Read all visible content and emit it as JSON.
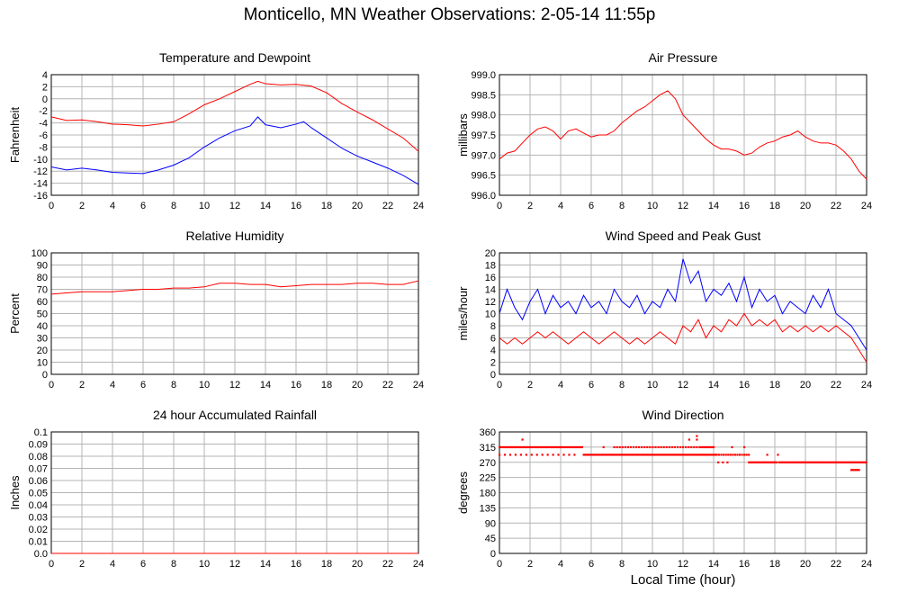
{
  "page": {
    "title": "Monticello, MN Weather Observations: 2-05-14 11:55p"
  },
  "chart_data": [
    {
      "id": "temp",
      "type": "line",
      "title": "Temperature and Dewpoint",
      "xlabel": "",
      "ylabel": "Fahrenheit",
      "xlim": [
        0,
        24
      ],
      "ylim": [
        -16,
        4
      ],
      "x_ticks": [
        0,
        2,
        4,
        6,
        8,
        10,
        12,
        14,
        16,
        18,
        20,
        22,
        24
      ],
      "y_ticks": [
        -16,
        -14,
        -12,
        -10,
        -8,
        -6,
        -4,
        -2,
        0,
        2,
        4
      ],
      "y_tick_labels": [
        "-16",
        "-14",
        "-12",
        "-10",
        "-8",
        "-6",
        "-4",
        "-2",
        "0",
        "2",
        "4"
      ],
      "grid": true,
      "series": [
        {
          "color": "#ff0000",
          "x": [
            0,
            1,
            2,
            3,
            4,
            5,
            6,
            7,
            8,
            9,
            10,
            11,
            12,
            13,
            13.5,
            14,
            15,
            16,
            17,
            18,
            19,
            20,
            21,
            22,
            23,
            24
          ],
          "y": [
            -3,
            -3.6,
            -3.5,
            -3.8,
            -4.2,
            -4.3,
            -4.5,
            -4.2,
            -3.8,
            -2.5,
            -1,
            0,
            1.2,
            2.4,
            2.9,
            2.5,
            2.3,
            2.4,
            2.1,
            1,
            -0.8,
            -2.2,
            -3.5,
            -5,
            -6.5,
            -8.7
          ]
        },
        {
          "color": "#0000ff",
          "x": [
            0,
            1,
            2,
            3,
            4,
            5,
            6,
            7,
            8,
            9,
            10,
            11,
            12,
            13,
            13.5,
            14,
            15,
            16,
            16.5,
            17,
            18,
            19,
            20,
            21,
            22,
            23,
            24
          ],
          "y": [
            -11.3,
            -11.8,
            -11.5,
            -11.8,
            -12.2,
            -12.3,
            -12.4,
            -11.8,
            -11,
            -9.8,
            -8,
            -6.5,
            -5.3,
            -4.5,
            -3,
            -4.3,
            -4.8,
            -4.2,
            -3.8,
            -4.8,
            -6.5,
            -8.2,
            -9.5,
            -10.5,
            -11.5,
            -12.7,
            -14.2
          ]
        }
      ]
    },
    {
      "id": "pressure",
      "type": "line",
      "title": "Air Pressure",
      "xlabel": "",
      "ylabel": "millibars",
      "xlim": [
        0,
        24
      ],
      "ylim": [
        996,
        999
      ],
      "x_ticks": [
        0,
        2,
        4,
        6,
        8,
        10,
        12,
        14,
        16,
        18,
        20,
        22,
        24
      ],
      "y_ticks": [
        996,
        996.5,
        997,
        997.5,
        998,
        998.5,
        999
      ],
      "y_tick_labels": [
        "996.0",
        "996.5",
        "997.0",
        "997.5",
        "998.0",
        "998.5",
        "999.0"
      ],
      "grid": true,
      "series": [
        {
          "color": "#ff0000",
          "x": [
            0,
            0.5,
            1,
            1.5,
            2,
            2.5,
            3,
            3.5,
            4,
            4.5,
            5,
            5.5,
            6,
            6.5,
            7,
            7.5,
            8,
            8.5,
            9,
            9.5,
            10,
            10.5,
            11,
            11.5,
            12,
            12.5,
            13,
            13.5,
            14,
            14.5,
            15,
            15.5,
            16,
            16.5,
            17,
            17.5,
            18,
            18.5,
            19,
            19.5,
            20,
            20.5,
            21,
            21.5,
            22,
            22.5,
            23,
            23.5,
            24
          ],
          "y": [
            996.9,
            997.05,
            997.1,
            997.3,
            997.5,
            997.65,
            997.7,
            997.6,
            997.4,
            997.6,
            997.65,
            997.55,
            997.45,
            997.5,
            997.5,
            997.6,
            997.8,
            997.95,
            998.1,
            998.2,
            998.35,
            998.5,
            998.6,
            998.4,
            998.0,
            997.8,
            997.6,
            997.4,
            997.25,
            997.15,
            997.15,
            997.1,
            997.0,
            997.05,
            997.2,
            997.3,
            997.35,
            997.45,
            997.5,
            997.6,
            997.45,
            997.35,
            997.3,
            997.3,
            997.25,
            997.1,
            996.9,
            996.6,
            996.4
          ]
        }
      ]
    },
    {
      "id": "humidity",
      "type": "line",
      "title": "Relative Humidity",
      "xlabel": "",
      "ylabel": "Percent",
      "xlim": [
        0,
        24
      ],
      "ylim": [
        0,
        100
      ],
      "x_ticks": [
        0,
        2,
        4,
        6,
        8,
        10,
        12,
        14,
        16,
        18,
        20,
        22,
        24
      ],
      "y_ticks": [
        0,
        10,
        20,
        30,
        40,
        50,
        60,
        70,
        80,
        90,
        100
      ],
      "y_tick_labels": [
        "0",
        "10",
        "20",
        "30",
        "40",
        "50",
        "60",
        "70",
        "80",
        "90",
        "100"
      ],
      "grid": true,
      "series": [
        {
          "color": "#ff0000",
          "x": [
            0,
            1,
            2,
            3,
            4,
            5,
            6,
            7,
            8,
            9,
            10,
            11,
            12,
            13,
            14,
            15,
            16,
            17,
            18,
            19,
            20,
            21,
            22,
            23,
            24
          ],
          "y": [
            66,
            67,
            68,
            68,
            68,
            69,
            70,
            70,
            71,
            71,
            72,
            75,
            75,
            74,
            74,
            72,
            73,
            74,
            74,
            74,
            75,
            75,
            74,
            74,
            77
          ]
        }
      ]
    },
    {
      "id": "wind",
      "type": "line",
      "title": "Wind Speed and Peak Gust",
      "xlabel": "",
      "ylabel": "miles/hour",
      "xlim": [
        0,
        24
      ],
      "ylim": [
        0,
        20
      ],
      "x_ticks": [
        0,
        2,
        4,
        6,
        8,
        10,
        12,
        14,
        16,
        18,
        20,
        22,
        24
      ],
      "y_ticks": [
        0,
        2,
        4,
        6,
        8,
        10,
        12,
        14,
        16,
        18,
        20
      ],
      "y_tick_labels": [
        "0",
        "2",
        "4",
        "6",
        "8",
        "10",
        "12",
        "14",
        "16",
        "18",
        "20"
      ],
      "grid": true,
      "series": [
        {
          "color": "#0000ff",
          "x": [
            0,
            0.5,
            1,
            1.5,
            2,
            2.5,
            3,
            3.5,
            4,
            4.5,
            5,
            5.5,
            6,
            6.5,
            7,
            7.5,
            8,
            8.5,
            9,
            9.5,
            10,
            10.5,
            11,
            11.5,
            12,
            12.5,
            13,
            13.5,
            14,
            14.5,
            15,
            15.5,
            16,
            16.5,
            17,
            17.5,
            18,
            18.5,
            19,
            19.5,
            20,
            20.5,
            21,
            21.5,
            22,
            22.5,
            23,
            23.5,
            24
          ],
          "y": [
            10,
            14,
            11,
            9,
            12,
            14,
            10,
            13,
            11,
            12,
            10,
            13,
            11,
            12,
            10,
            14,
            12,
            11,
            13,
            10,
            12,
            11,
            14,
            12,
            19,
            15,
            17,
            12,
            14,
            13,
            15,
            12,
            16,
            11,
            14,
            12,
            13,
            10,
            12,
            11,
            10,
            13,
            11,
            14,
            10,
            9,
            8,
            6,
            4
          ]
        },
        {
          "color": "#ff0000",
          "x": [
            0,
            0.5,
            1,
            1.5,
            2,
            2.5,
            3,
            3.5,
            4,
            4.5,
            5,
            5.5,
            6,
            6.5,
            7,
            7.5,
            8,
            8.5,
            9,
            9.5,
            10,
            10.5,
            11,
            11.5,
            12,
            12.5,
            13,
            13.5,
            14,
            14.5,
            15,
            15.5,
            16,
            16.5,
            17,
            17.5,
            18,
            18.5,
            19,
            19.5,
            20,
            20.5,
            21,
            21.5,
            22,
            22.5,
            23,
            23.5,
            24
          ],
          "y": [
            6,
            5,
            6,
            5,
            6,
            7,
            6,
            7,
            6,
            5,
            6,
            7,
            6,
            5,
            6,
            7,
            6,
            5,
            6,
            5,
            6,
            7,
            6,
            5,
            8,
            7,
            9,
            6,
            8,
            7,
            9,
            8,
            10,
            8,
            9,
            8,
            9,
            7,
            8,
            7,
            8,
            7,
            8,
            7,
            8,
            7,
            6,
            4,
            2
          ]
        }
      ]
    },
    {
      "id": "rain",
      "type": "line",
      "title": "24 hour Accumulated Rainfall",
      "xlabel": "",
      "ylabel": "Inches",
      "xlim": [
        0,
        24
      ],
      "ylim": [
        0,
        0.1
      ],
      "x_ticks": [
        0,
        2,
        4,
        6,
        8,
        10,
        12,
        14,
        16,
        18,
        20,
        22,
        24
      ],
      "y_ticks": [
        0,
        0.01,
        0.02,
        0.03,
        0.04,
        0.05,
        0.06,
        0.07,
        0.08,
        0.09,
        0.1
      ],
      "y_tick_labels": [
        "0.0",
        "0.01",
        "0.02",
        "0.03",
        "0.04",
        "0.05",
        "0.06",
        "0.07",
        "0.08",
        "0.09",
        "0.1"
      ],
      "grid": true,
      "series": [
        {
          "color": "#ff0000",
          "x": [
            0,
            24
          ],
          "y": [
            0,
            0
          ]
        }
      ]
    },
    {
      "id": "direction",
      "type": "scatter",
      "title": "Wind Direction",
      "xlabel": "Local Time (hour)",
      "ylabel": "degrees",
      "xlim": [
        0,
        24
      ],
      "ylim": [
        0,
        360
      ],
      "x_ticks": [
        0,
        2,
        4,
        6,
        8,
        10,
        12,
        14,
        16,
        18,
        20,
        22,
        24
      ],
      "y_ticks": [
        0,
        45,
        90,
        135,
        180,
        225,
        270,
        315,
        360
      ],
      "y_tick_labels": [
        "0",
        "45",
        "90",
        "135",
        "180",
        "225",
        "270",
        "315",
        "360"
      ],
      "grid": true,
      "runs": [
        {
          "x_start": 0.0,
          "x_end": 5.4,
          "y": 315,
          "step": 0.1
        },
        {
          "x_start": 0.0,
          "x_end": 5.0,
          "y": 292.5,
          "step": 0.35
        },
        {
          "x_start": 5.5,
          "x_end": 14.2,
          "y": 292.5,
          "step": 0.1
        },
        {
          "x_start": 7.5,
          "x_end": 13.2,
          "y": 315,
          "step": 0.18
        },
        {
          "x_start": 13.2,
          "x_end": 14.0,
          "y": 315,
          "step": 0.1
        },
        {
          "x_start": 14.2,
          "x_end": 16.3,
          "y": 292.5,
          "step": 0.15
        },
        {
          "x_start": 14.3,
          "x_end": 14.9,
          "y": 270,
          "step": 0.3
        },
        {
          "x_start": 16.3,
          "x_end": 18.2,
          "y": 270,
          "step": 0.08
        },
        {
          "x_start": 18.3,
          "x_end": 24.0,
          "y": 270,
          "step": 0.08
        },
        {
          "x_start": 23.0,
          "x_end": 23.5,
          "y": 247.5,
          "step": 0.1
        }
      ],
      "points": [
        {
          "x": 1.5,
          "y": 337.5
        },
        {
          "x": 6.8,
          "y": 315
        },
        {
          "x": 12.4,
          "y": 337.5
        },
        {
          "x": 12.9,
          "y": 337.5
        },
        {
          "x": 12.9,
          "y": 348
        },
        {
          "x": 15.2,
          "y": 315
        },
        {
          "x": 17.5,
          "y": 292.5
        },
        {
          "x": 18.2,
          "y": 292.5
        },
        {
          "x": 16.0,
          "y": 315
        }
      ],
      "color": "#ff0000"
    }
  ]
}
